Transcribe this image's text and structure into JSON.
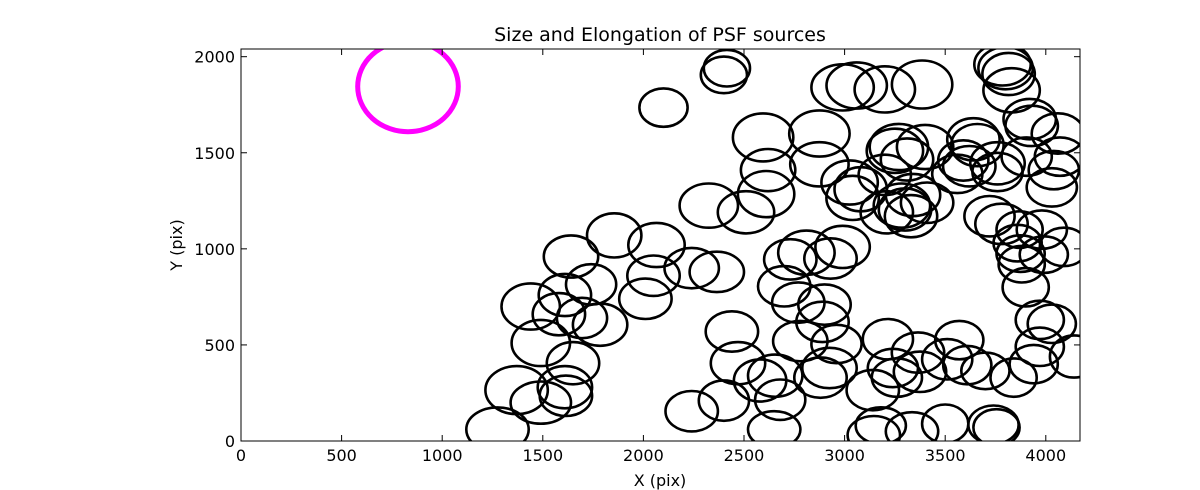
{
  "chart_data": {
    "type": "scatter",
    "title": "Size and Elongation of PSF sources",
    "xlabel": "X (pix)",
    "ylabel": "Y (pix)",
    "xlim": [
      0,
      4170
    ],
    "ylim": [
      0,
      2040
    ],
    "xticks": [
      0,
      500,
      1000,
      1500,
      2000,
      2500,
      3000,
      3500,
      4000
    ],
    "yticks": [
      0,
      500,
      1000,
      1500,
      2000
    ],
    "ellipse_color": "#000000",
    "reference_color": "#ff00ff",
    "reference_marker": {
      "x": 830,
      "y": 1845,
      "rx": 250,
      "ry": 235
    },
    "sources": [
      [
        1275,
        60,
        155,
        115
      ],
      [
        1370,
        265,
        155,
        125
      ],
      [
        1490,
        200,
        150,
        110
      ],
      [
        1610,
        280,
        135,
        110
      ],
      [
        1615,
        235,
        130,
        105
      ],
      [
        1650,
        405,
        130,
        110
      ],
      [
        1490,
        510,
        145,
        120
      ],
      [
        1440,
        700,
        145,
        120
      ],
      [
        1580,
        660,
        130,
        110
      ],
      [
        1610,
        760,
        130,
        110
      ],
      [
        1695,
        640,
        125,
        105
      ],
      [
        1785,
        605,
        135,
        110
      ],
      [
        1740,
        815,
        125,
        105
      ],
      [
        1640,
        960,
        135,
        110
      ],
      [
        1855,
        1070,
        135,
        115
      ],
      [
        2010,
        740,
        130,
        105
      ],
      [
        2050,
        860,
        130,
        105
      ],
      [
        2065,
        1020,
        140,
        115
      ],
      [
        2100,
        1735,
        120,
        100
      ],
      [
        2240,
        155,
        130,
        105
      ],
      [
        2240,
        900,
        135,
        105
      ],
      [
        2325,
        1225,
        145,
        115
      ],
      [
        2365,
        880,
        135,
        105
      ],
      [
        2400,
        210,
        125,
        105
      ],
      [
        2400,
        1905,
        115,
        95
      ],
      [
        2415,
        1940,
        115,
        95
      ],
      [
        2440,
        570,
        130,
        105
      ],
      [
        2470,
        405,
        135,
        110
      ],
      [
        2510,
        1190,
        140,
        110
      ],
      [
        2580,
        315,
        130,
        110
      ],
      [
        2610,
        1285,
        140,
        120
      ],
      [
        2620,
        1410,
        135,
        110
      ],
      [
        2595,
        1580,
        150,
        125
      ],
      [
        2650,
        60,
        130,
        95
      ],
      [
        2655,
        340,
        135,
        110
      ],
      [
        2680,
        215,
        125,
        105
      ],
      [
        2700,
        805,
        130,
        105
      ],
      [
        2730,
        945,
        130,
        105
      ],
      [
        2770,
        720,
        130,
        105
      ],
      [
        2780,
        520,
        135,
        105
      ],
      [
        2810,
        980,
        140,
        115
      ],
      [
        2875,
        1440,
        145,
        115
      ],
      [
        2875,
        1600,
        150,
        120
      ],
      [
        2880,
        330,
        130,
        105
      ],
      [
        2890,
        620,
        130,
        105
      ],
      [
        2900,
        710,
        130,
        105
      ],
      [
        2925,
        380,
        135,
        105
      ],
      [
        2930,
        950,
        130,
        105
      ],
      [
        2960,
        505,
        125,
        100
      ],
      [
        2990,
        1010,
        135,
        110
      ],
      [
        2990,
        1840,
        155,
        120
      ],
      [
        3025,
        1345,
        140,
        115
      ],
      [
        3060,
        1850,
        150,
        120
      ],
      [
        3040,
        1265,
        130,
        115
      ],
      [
        3080,
        1310,
        130,
        115
      ],
      [
        3140,
        265,
        130,
        105
      ],
      [
        3145,
        30,
        130,
        100
      ],
      [
        3180,
        80,
        125,
        95
      ],
      [
        3200,
        1830,
        150,
        120
      ],
      [
        3200,
        1385,
        130,
        105
      ],
      [
        3210,
        1190,
        130,
        110
      ],
      [
        3215,
        530,
        125,
        105
      ],
      [
        3240,
        380,
        125,
        100
      ],
      [
        3250,
        1510,
        140,
        115
      ],
      [
        3260,
        330,
        125,
        100
      ],
      [
        3270,
        1530,
        145,
        120
      ],
      [
        3285,
        1225,
        140,
        115
      ],
      [
        3300,
        1205,
        130,
        110
      ],
      [
        3310,
        1465,
        130,
        110
      ],
      [
        3330,
        1170,
        130,
        110
      ],
      [
        3335,
        50,
        130,
        100
      ],
      [
        3340,
        1280,
        135,
        110
      ],
      [
        3365,
        460,
        130,
        105
      ],
      [
        3375,
        360,
        130,
        105
      ],
      [
        3385,
        1855,
        150,
        125
      ],
      [
        3400,
        1530,
        140,
        115
      ],
      [
        3410,
        1240,
        130,
        105
      ],
      [
        3500,
        90,
        115,
        100
      ],
      [
        3510,
        425,
        125,
        105
      ],
      [
        3560,
        1390,
        125,
        100
      ],
      [
        3570,
        525,
        120,
        100
      ],
      [
        3590,
        1460,
        125,
        105
      ],
      [
        3610,
        395,
        120,
        100
      ],
      [
        3620,
        1430,
        130,
        105
      ],
      [
        3640,
        1570,
        130,
        110
      ],
      [
        3660,
        1540,
        130,
        110
      ],
      [
        3700,
        365,
        120,
        95
      ],
      [
        3720,
        1170,
        125,
        105
      ],
      [
        3740,
        85,
        125,
        100
      ],
      [
        3755,
        70,
        115,
        95
      ],
      [
        3760,
        1400,
        125,
        100
      ],
      [
        3760,
        1445,
        135,
        110
      ],
      [
        3780,
        1130,
        130,
        105
      ],
      [
        3785,
        1960,
        140,
        110
      ],
      [
        3800,
        1940,
        135,
        110
      ],
      [
        3815,
        1910,
        130,
        110
      ],
      [
        3840,
        330,
        115,
        100
      ],
      [
        3830,
        1825,
        140,
        115
      ],
      [
        3860,
        1030,
        120,
        95
      ],
      [
        3870,
        1100,
        115,
        95
      ],
      [
        3875,
        975,
        120,
        95
      ],
      [
        3880,
        920,
        115,
        95
      ],
      [
        3900,
        800,
        115,
        100
      ],
      [
        3905,
        1480,
        125,
        100
      ],
      [
        3920,
        1675,
        130,
        105
      ],
      [
        3930,
        1640,
        130,
        105
      ],
      [
        3940,
        400,
        120,
        100
      ],
      [
        3970,
        630,
        120,
        100
      ],
      [
        3970,
        490,
        120,
        100
      ],
      [
        3980,
        1100,
        125,
        100
      ],
      [
        3990,
        970,
        120,
        95
      ],
      [
        4030,
        610,
        120,
        100
      ],
      [
        4030,
        1320,
        125,
        100
      ],
      [
        4040,
        1410,
        125,
        100
      ],
      [
        4060,
        1600,
        130,
        105
      ],
      [
        4070,
        1480,
        125,
        100
      ],
      [
        4090,
        1010,
        120,
        100
      ],
      [
        4140,
        440,
        120,
        110
      ]
    ]
  }
}
